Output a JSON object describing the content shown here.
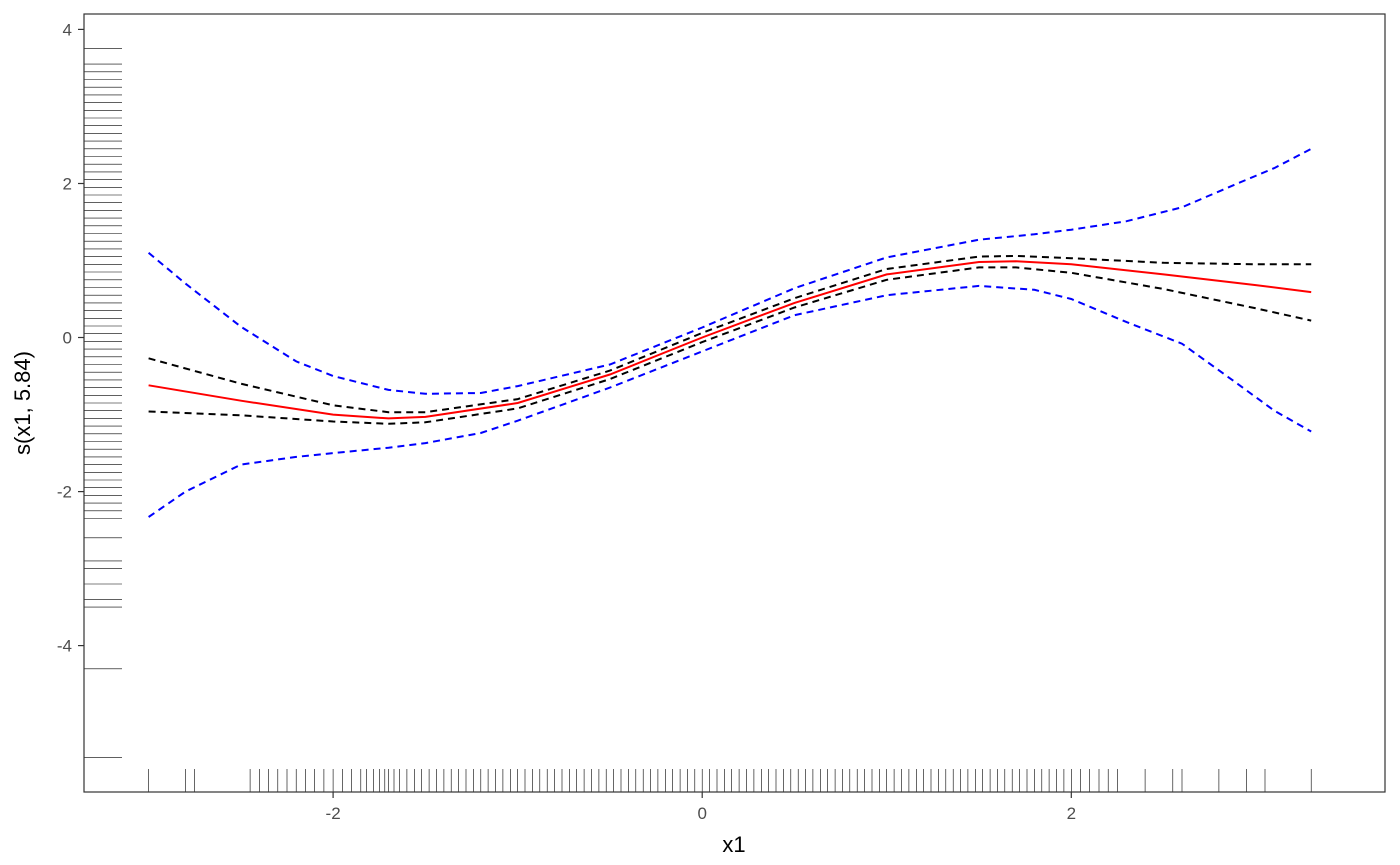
{
  "chart_data": {
    "type": "line",
    "title": "",
    "xlabel": "x1",
    "ylabel": "s(x1, 5.84)",
    "xlim": [
      -3.35,
      3.7
    ],
    "ylim": [
      -5.9,
      4.2
    ],
    "xticks": [
      -2,
      0,
      2
    ],
    "yticks": [
      -4,
      -2,
      0,
      2,
      4
    ],
    "xtick_labels": [
      "-2",
      "0",
      "2"
    ],
    "ytick_labels": [
      "-4",
      "-2",
      "0",
      "2",
      "4"
    ],
    "grid": false,
    "legend": "none",
    "series": [
      {
        "style": "solid",
        "color": "#ff0000",
        "x": [
          -3.0,
          -2.5,
          -2.0,
          -1.7,
          -1.5,
          -1.0,
          -0.5,
          0.0,
          0.5,
          1.0,
          1.5,
          1.7,
          2.0,
          2.5,
          3.0,
          3.3
        ],
        "y": [
          -0.62,
          -0.82,
          -1.0,
          -1.05,
          -1.03,
          -0.85,
          -0.48,
          0.0,
          0.45,
          0.82,
          0.98,
          0.99,
          0.95,
          0.82,
          0.68,
          0.59
        ]
      },
      {
        "style": "dashed",
        "color": "#000000",
        "x": [
          -3.0,
          -2.5,
          -2.0,
          -1.7,
          -1.5,
          -1.0,
          -0.5,
          0.0,
          0.5,
          1.0,
          1.5,
          1.7,
          2.0,
          2.5,
          3.0,
          3.3
        ],
        "y": [
          -0.27,
          -0.6,
          -0.88,
          -0.97,
          -0.97,
          -0.8,
          -0.43,
          0.06,
          0.51,
          0.89,
          1.05,
          1.06,
          1.03,
          0.97,
          0.95,
          0.95
        ]
      },
      {
        "style": "dashed",
        "color": "#000000",
        "x": [
          -3.0,
          -2.5,
          -2.0,
          -1.7,
          -1.5,
          -1.0,
          -0.5,
          0.0,
          0.5,
          1.0,
          1.5,
          1.7,
          2.0,
          2.5,
          3.0,
          3.3
        ],
        "y": [
          -0.96,
          -1.01,
          -1.09,
          -1.12,
          -1.1,
          -0.92,
          -0.54,
          -0.06,
          0.39,
          0.75,
          0.91,
          0.91,
          0.84,
          0.63,
          0.38,
          0.22
        ]
      },
      {
        "style": "dashed",
        "color": "#0000ff",
        "x": [
          -3.0,
          -2.8,
          -2.5,
          -2.2,
          -2.0,
          -1.7,
          -1.5,
          -1.2,
          -1.0,
          -0.5,
          0.0,
          0.5,
          1.0,
          1.5,
          1.8,
          2.0,
          2.3,
          2.6,
          2.9,
          3.1,
          3.3
        ],
        "y": [
          1.1,
          0.7,
          0.14,
          -0.31,
          -0.5,
          -0.68,
          -0.73,
          -0.72,
          -0.63,
          -0.35,
          0.13,
          0.64,
          1.04,
          1.27,
          1.34,
          1.4,
          1.51,
          1.69,
          2.0,
          2.2,
          2.45
        ]
      },
      {
        "style": "dashed",
        "color": "#0000ff",
        "x": [
          -3.0,
          -2.8,
          -2.5,
          -2.2,
          -2.0,
          -1.7,
          -1.5,
          -1.2,
          -1.0,
          -0.5,
          0.0,
          0.5,
          1.0,
          1.5,
          1.8,
          2.0,
          2.3,
          2.6,
          2.9,
          3.1,
          3.3
        ],
        "y": [
          -2.33,
          -2.0,
          -1.65,
          -1.55,
          -1.5,
          -1.43,
          -1.37,
          -1.24,
          -1.08,
          -0.65,
          -0.18,
          0.29,
          0.55,
          0.67,
          0.62,
          0.5,
          0.2,
          -0.08,
          -0.6,
          -0.95,
          -1.22
        ]
      }
    ],
    "rug_x": [
      -3.0,
      -2.8,
      -2.75,
      -2.45,
      -2.4,
      -2.35,
      -2.3,
      -2.25,
      -2.2,
      -2.15,
      -2.1,
      -2.05,
      -2.0,
      -1.95,
      -1.9,
      -1.85,
      -1.82,
      -1.78,
      -1.75,
      -1.72,
      -1.7,
      -1.67,
      -1.64,
      -1.6,
      -1.56,
      -1.52,
      -1.48,
      -1.44,
      -1.4,
      -1.36,
      -1.32,
      -1.28,
      -1.24,
      -1.2,
      -1.16,
      -1.12,
      -1.08,
      -1.04,
      -1.0,
      -0.96,
      -0.92,
      -0.88,
      -0.84,
      -0.8,
      -0.76,
      -0.72,
      -0.68,
      -0.64,
      -0.6,
      -0.56,
      -0.52,
      -0.48,
      -0.44,
      -0.4,
      -0.36,
      -0.32,
      -0.28,
      -0.24,
      -0.2,
      -0.16,
      -0.12,
      -0.08,
      -0.04,
      0.0,
      0.04,
      0.08,
      0.12,
      0.16,
      0.2,
      0.24,
      0.28,
      0.32,
      0.36,
      0.4,
      0.44,
      0.48,
      0.52,
      0.56,
      0.6,
      0.64,
      0.68,
      0.72,
      0.76,
      0.8,
      0.84,
      0.88,
      0.92,
      0.96,
      1.0,
      1.04,
      1.08,
      1.12,
      1.16,
      1.2,
      1.24,
      1.28,
      1.32,
      1.36,
      1.4,
      1.44,
      1.48,
      1.52,
      1.56,
      1.6,
      1.64,
      1.68,
      1.72,
      1.76,
      1.8,
      1.84,
      1.88,
      1.92,
      1.96,
      2.0,
      2.05,
      2.1,
      2.15,
      2.2,
      2.25,
      2.4,
      2.55,
      2.6,
      2.8,
      2.95,
      3.05,
      3.3
    ],
    "rug_y": [
      3.75,
      3.55,
      3.45,
      3.35,
      3.25,
      3.15,
      3.05,
      2.95,
      2.85,
      2.75,
      2.65,
      2.55,
      2.45,
      2.35,
      2.25,
      2.15,
      2.05,
      1.95,
      1.85,
      1.75,
      1.65,
      1.55,
      1.45,
      1.35,
      1.25,
      1.15,
      1.05,
      0.95,
      0.85,
      0.75,
      0.65,
      0.55,
      0.45,
      0.35,
      0.25,
      0.15,
      0.05,
      -0.05,
      -0.15,
      -0.25,
      -0.35,
      -0.45,
      -0.55,
      -0.65,
      -0.75,
      -0.85,
      -0.95,
      -1.05,
      -1.15,
      -1.25,
      -1.35,
      -1.45,
      -1.55,
      -1.65,
      -1.75,
      -1.85,
      -1.95,
      -2.05,
      -2.15,
      -2.25,
      -2.35,
      -2.6,
      -2.9,
      -3.0,
      -3.2,
      -3.4,
      -3.5,
      -4.3,
      -5.45
    ]
  }
}
